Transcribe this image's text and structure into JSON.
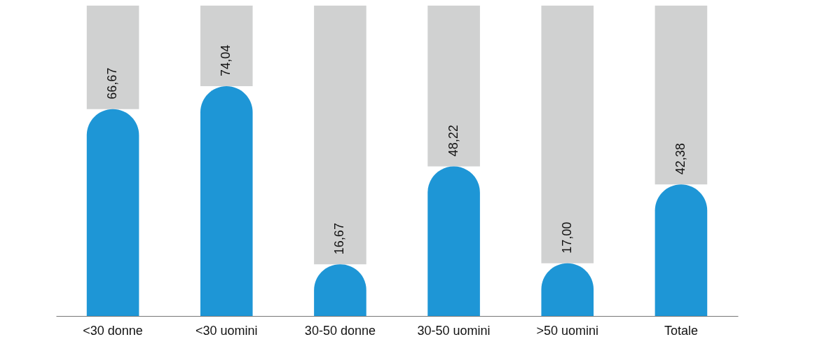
{
  "chart_data": {
    "type": "bar",
    "stacked": true,
    "tick_labels": "x",
    "categories": [
      "<30 donne",
      "<30 uomini",
      "30-50 donne",
      "30-50 uomini",
      ">50 uomini",
      "Totale"
    ],
    "series": [
      {
        "color": "#1e96d6",
        "values": [
          66.67,
          74.04,
          16.67,
          48.22,
          17.0,
          42.38
        ],
        "value_labels": [
          "66,67",
          "74,04",
          "16,67",
          "48,22",
          "17,00",
          "42,38"
        ]
      },
      {
        "color": "#d0d1d1",
        "values": [
          33.33,
          25.96,
          83.33,
          51.78,
          83.0,
          57.62
        ]
      }
    ]
  }
}
